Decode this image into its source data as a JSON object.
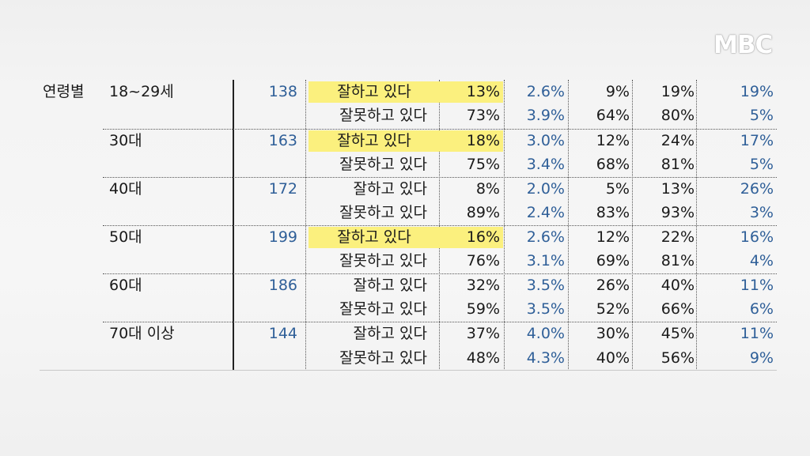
{
  "logo": "MBC",
  "category": "연령별",
  "groups": [
    {
      "age": "18~29세",
      "n": "138",
      "rows": [
        {
          "answer": "잘하고 있다",
          "pct": "13%",
          "moe": "2.6%",
          "c3": "9%",
          "c4": "19%",
          "c5": "19%",
          "highlight": true
        },
        {
          "answer": "잘못하고 있다",
          "pct": "73%",
          "moe": "3.9%",
          "c3": "64%",
          "c4": "80%",
          "c5": "5%",
          "highlight": false
        }
      ]
    },
    {
      "age": "30대",
      "n": "163",
      "rows": [
        {
          "answer": "잘하고 있다",
          "pct": "18%",
          "moe": "3.0%",
          "c3": "12%",
          "c4": "24%",
          "c5": "17%",
          "highlight": true
        },
        {
          "answer": "잘못하고 있다",
          "pct": "75%",
          "moe": "3.4%",
          "c3": "68%",
          "c4": "81%",
          "c5": "5%",
          "highlight": false
        }
      ]
    },
    {
      "age": "40대",
      "n": "172",
      "rows": [
        {
          "answer": "잘하고 있다",
          "pct": "8%",
          "moe": "2.0%",
          "c3": "5%",
          "c4": "13%",
          "c5": "26%",
          "highlight": false
        },
        {
          "answer": "잘못하고 있다",
          "pct": "89%",
          "moe": "2.4%",
          "c3": "83%",
          "c4": "93%",
          "c5": "3%",
          "highlight": false
        }
      ]
    },
    {
      "age": "50대",
      "n": "199",
      "rows": [
        {
          "answer": "잘하고 있다",
          "pct": "16%",
          "moe": "2.6%",
          "c3": "12%",
          "c4": "22%",
          "c5": "16%",
          "highlight": true
        },
        {
          "answer": "잘못하고 있다",
          "pct": "76%",
          "moe": "3.1%",
          "c3": "69%",
          "c4": "81%",
          "c5": "4%",
          "highlight": false
        }
      ]
    },
    {
      "age": "60대",
      "n": "186",
      "rows": [
        {
          "answer": "잘하고 있다",
          "pct": "32%",
          "moe": "3.5%",
          "c3": "26%",
          "c4": "40%",
          "c5": "11%",
          "highlight": false
        },
        {
          "answer": "잘못하고 있다",
          "pct": "59%",
          "moe": "3.5%",
          "c3": "52%",
          "c4": "66%",
          "c5": "6%",
          "highlight": false
        }
      ]
    },
    {
      "age": "70대 이상",
      "n": "144",
      "rows": [
        {
          "answer": "잘하고 있다",
          "pct": "37%",
          "moe": "4.0%",
          "c3": "30%",
          "c4": "45%",
          "c5": "11%",
          "highlight": false
        },
        {
          "answer": "잘못하고 있다",
          "pct": "48%",
          "moe": "4.3%",
          "c3": "40%",
          "c4": "56%",
          "c5": "9%",
          "highlight": false
        }
      ]
    }
  ]
}
